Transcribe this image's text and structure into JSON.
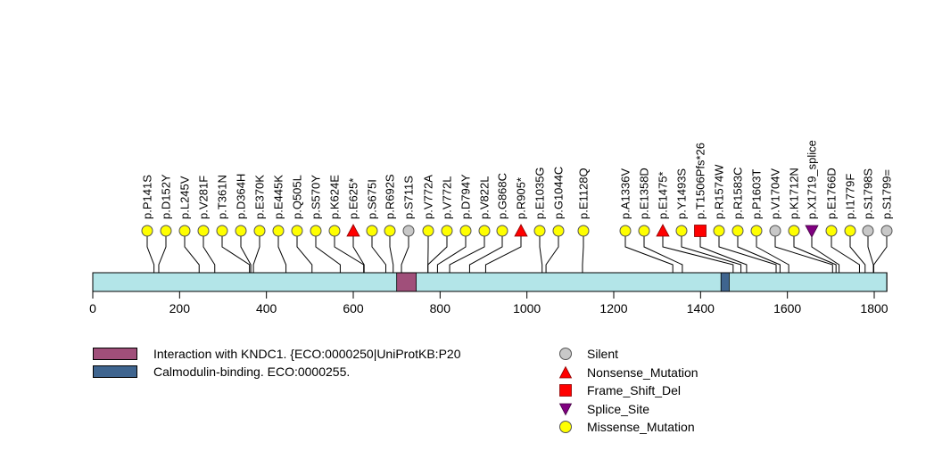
{
  "chart_data": {
    "type": "lollipop",
    "title": "",
    "xlabel": "",
    "ylabel": "",
    "xlim": [
      0,
      1829
    ],
    "x_ticks": [
      0,
      200,
      400,
      600,
      800,
      1000,
      1200,
      1400,
      1600,
      1800
    ],
    "protein_length": 1829,
    "backbone_color": "#b3e5e8",
    "domains": [
      {
        "name": "Interaction with KNDC1. {ECO:0000250|UniProtKB:P20",
        "start": 700,
        "end": 745,
        "color": "#a04f7a"
      },
      {
        "name": "Calmodulin-binding. ECO:0000255.",
        "start": 1447,
        "end": 1466,
        "color": "#3f658f"
      }
    ],
    "mutation_types": [
      {
        "name": "Silent",
        "shape": "circle",
        "color": "#c8c8c8"
      },
      {
        "name": "Nonsense_Mutation",
        "shape": "triangle-up",
        "color": "#ff0000"
      },
      {
        "name": "Frame_Shift_Del",
        "shape": "square",
        "color": "#ff0000"
      },
      {
        "name": "Splice_Site",
        "shape": "triangle-down",
        "color": "#800080"
      },
      {
        "name": "Missense_Mutation",
        "shape": "circle",
        "color": "#ffff00"
      }
    ],
    "mutations": [
      {
        "label": "p.P141S",
        "position": 141,
        "type": "Missense_Mutation"
      },
      {
        "label": "p.D152Y",
        "position": 152,
        "type": "Missense_Mutation"
      },
      {
        "label": "p.L245V",
        "position": 245,
        "type": "Missense_Mutation"
      },
      {
        "label": "p.V281F",
        "position": 281,
        "type": "Missense_Mutation"
      },
      {
        "label": "p.T361N",
        "position": 361,
        "type": "Missense_Mutation"
      },
      {
        "label": "p.D364H",
        "position": 364,
        "type": "Missense_Mutation"
      },
      {
        "label": "p.E370K",
        "position": 370,
        "type": "Missense_Mutation"
      },
      {
        "label": "p.E445K",
        "position": 445,
        "type": "Missense_Mutation"
      },
      {
        "label": "p.Q505L",
        "position": 505,
        "type": "Missense_Mutation"
      },
      {
        "label": "p.S570Y",
        "position": 570,
        "type": "Missense_Mutation"
      },
      {
        "label": "p.K624E",
        "position": 624,
        "type": "Missense_Mutation"
      },
      {
        "label": "p.E625*",
        "position": 625,
        "type": "Nonsense_Mutation"
      },
      {
        "label": "p.S675I",
        "position": 675,
        "type": "Missense_Mutation"
      },
      {
        "label": "p.R692S",
        "position": 692,
        "type": "Missense_Mutation"
      },
      {
        "label": "p.S711S",
        "position": 711,
        "type": "Silent"
      },
      {
        "label": "p.V772A",
        "position": 772,
        "type": "Missense_Mutation"
      },
      {
        "label": "p.V772L",
        "position": 772,
        "type": "Missense_Mutation"
      },
      {
        "label": "p.D794Y",
        "position": 794,
        "type": "Missense_Mutation"
      },
      {
        "label": "p.V822L",
        "position": 822,
        "type": "Missense_Mutation"
      },
      {
        "label": "p.G868C",
        "position": 868,
        "type": "Missense_Mutation"
      },
      {
        "label": "p.R905*",
        "position": 905,
        "type": "Nonsense_Mutation"
      },
      {
        "label": "p.E1035G",
        "position": 1035,
        "type": "Missense_Mutation"
      },
      {
        "label": "p.G1044C",
        "position": 1044,
        "type": "Missense_Mutation"
      },
      {
        "label": "p.E1128Q",
        "position": 1128,
        "type": "Missense_Mutation"
      },
      {
        "label": "p.A1336V",
        "position": 1336,
        "type": "Missense_Mutation"
      },
      {
        "label": "p.E1358D",
        "position": 1358,
        "type": "Missense_Mutation"
      },
      {
        "label": "p.E1475*",
        "position": 1475,
        "type": "Nonsense_Mutation"
      },
      {
        "label": "p.Y1493S",
        "position": 1493,
        "type": "Missense_Mutation"
      },
      {
        "label": "p.T1506Pfs*26",
        "position": 1506,
        "type": "Frame_Shift_Del"
      },
      {
        "label": "p.R1574W",
        "position": 1574,
        "type": "Missense_Mutation"
      },
      {
        "label": "p.R1583C",
        "position": 1583,
        "type": "Missense_Mutation"
      },
      {
        "label": "p.P1603T",
        "position": 1603,
        "type": "Missense_Mutation"
      },
      {
        "label": "p.V1704V",
        "position": 1704,
        "type": "Silent"
      },
      {
        "label": "p.K1712N",
        "position": 1712,
        "type": "Missense_Mutation"
      },
      {
        "label": "p.X1719_splice",
        "position": 1719,
        "type": "Splice_Site"
      },
      {
        "label": "p.E1766D",
        "position": 1766,
        "type": "Missense_Mutation"
      },
      {
        "label": "p.I1779F",
        "position": 1779,
        "type": "Missense_Mutation"
      },
      {
        "label": "p.S1798S",
        "position": 1798,
        "type": "Silent"
      },
      {
        "label": "p.S1799=",
        "position": 1799,
        "type": "Silent"
      }
    ],
    "legend_domains_placement": "bottom-left",
    "legend_mutations_placement": "bottom-center"
  },
  "legend": {
    "domains": [
      {
        "label": "Interaction with KNDC1. {ECO:0000250|UniProtKB:P20",
        "color": "#a04f7a"
      },
      {
        "label": "Calmodulin-binding. ECO:0000255.",
        "color": "#3f658f"
      }
    ],
    "mutations": [
      {
        "label": "Silent",
        "icon": "circle-icon",
        "color": "#c8c8c8"
      },
      {
        "label": "Nonsense_Mutation",
        "icon": "triangle-up-icon",
        "color": "#ff0000"
      },
      {
        "label": "Frame_Shift_Del",
        "icon": "square-icon",
        "color": "#ff0000"
      },
      {
        "label": "Splice_Site",
        "icon": "triangle-down-icon",
        "color": "#800080"
      },
      {
        "label": "Missense_Mutation",
        "icon": "circle-icon",
        "color": "#ffff00"
      }
    ]
  }
}
